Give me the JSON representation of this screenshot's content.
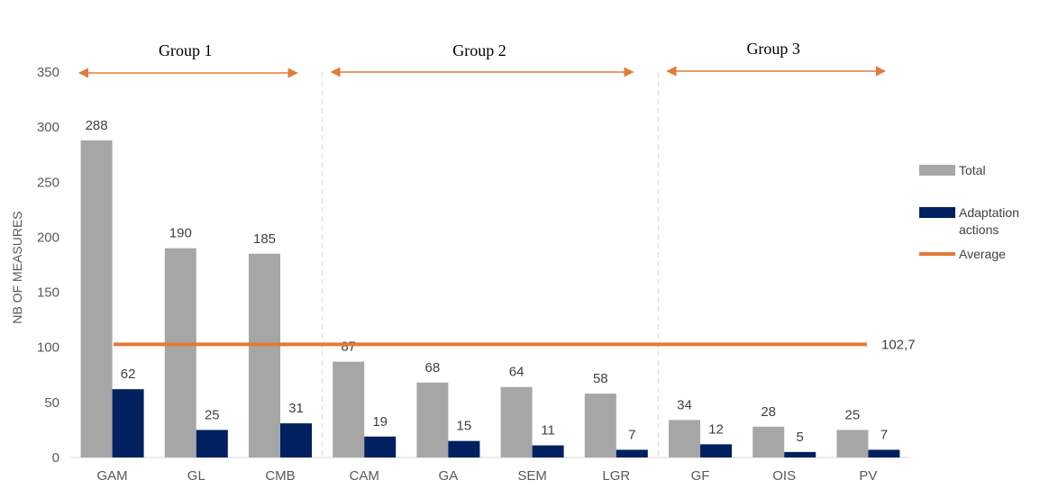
{
  "chart_data": {
    "type": "bar",
    "categories": [
      "GAM",
      "GL",
      "CMB",
      "CAM",
      "GA",
      "SEM",
      "LGR",
      "GF",
      "OIS",
      "PV"
    ],
    "series": [
      {
        "name": "Total",
        "values": [
          288,
          190,
          185,
          87,
          68,
          64,
          58,
          34,
          28,
          25
        ],
        "color": "#a6a6a6"
      },
      {
        "name": "Adaptation actions",
        "values": [
          62,
          25,
          31,
          19,
          15,
          11,
          7,
          12,
          5,
          7
        ],
        "color": "#002060"
      }
    ],
    "average": {
      "name": "Average",
      "value": 102.7,
      "label": "102,7",
      "color": "#e07b39"
    },
    "groups": [
      {
        "label": "Group 1",
        "categories": [
          "GAM",
          "GL",
          "CMB"
        ]
      },
      {
        "label": "Group 2",
        "categories": [
          "CAM",
          "GA",
          "SEM",
          "LGR"
        ]
      },
      {
        "label": "Group 3",
        "categories": [
          "GF",
          "OIS",
          "PV"
        ]
      }
    ],
    "ylabel": "NB OF MEASURES",
    "ylim": [
      0,
      350
    ],
    "yticks": [
      0,
      50,
      100,
      150,
      200,
      250,
      300,
      350
    ],
    "grid": false,
    "legend": "right",
    "legend_entries": [
      {
        "label_lines": [
          "Total"
        ],
        "color": "#a6a6a6",
        "marker": "bar"
      },
      {
        "label_lines": [
          "Adaptation",
          "actions"
        ],
        "color": "#002060",
        "marker": "bar"
      },
      {
        "label_lines": [
          "Average"
        ],
        "color": "#e07b39",
        "marker": "line"
      }
    ],
    "colors": {
      "total": "#a6a6a6",
      "adaptation": "#002060",
      "average": "#e07b39",
      "arrow": "#e07b39",
      "separator": "#d9d9d9",
      "axis": "#d9d9d9"
    }
  }
}
